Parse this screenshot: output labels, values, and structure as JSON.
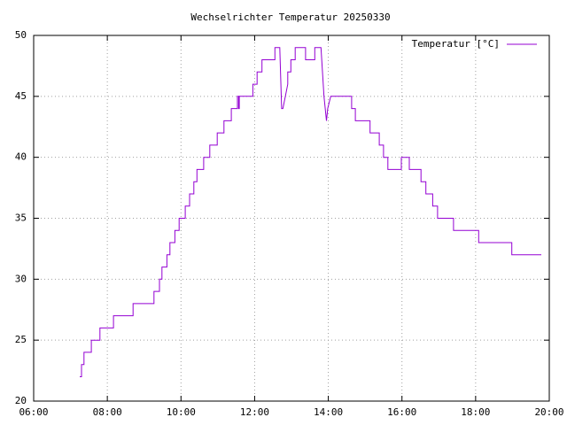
{
  "chart_data": {
    "type": "line",
    "title": "Wechselrichter Temperatur 20250330",
    "x": [
      "07:15",
      "07:18",
      "07:18",
      "07:22",
      "07:22",
      "07:34",
      "07:34",
      "07:48",
      "07:48",
      "08:10",
      "08:10",
      "08:42",
      "08:42",
      "09:16",
      "09:16",
      "09:25",
      "09:25",
      "09:29",
      "09:29",
      "09:37",
      "09:37",
      "09:42",
      "09:42",
      "09:50",
      "09:50",
      "09:57",
      "09:57",
      "10:07",
      "10:07",
      "10:14",
      "10:14",
      "10:21",
      "10:21",
      "10:26",
      "10:26",
      "10:37",
      "10:37",
      "10:47",
      "10:47",
      "10:59",
      "10:59",
      "11:10",
      "11:10",
      "11:22",
      "11:22",
      "11:32",
      "11:32",
      "11:34",
      "11:34",
      "11:35",
      "11:35",
      "11:57",
      "11:57",
      "12:04",
      "12:04",
      "12:12",
      "12:12",
      "12:33",
      "12:33",
      "12:41",
      "12:44",
      "12:46",
      "12:50",
      "12:54",
      "12:54",
      "12:59",
      "12:59",
      "13:06",
      "13:06",
      "13:23",
      "13:23",
      "13:38",
      "13:38",
      "13:48",
      "13:53",
      "13:55",
      "13:57",
      "13:59",
      "14:04",
      "14:38",
      "14:38",
      "14:44",
      "14:44",
      "15:08",
      "15:08",
      "15:23",
      "15:23",
      "15:30",
      "15:30",
      "15:37",
      "15:37",
      "15:59",
      "15:59",
      "16:12",
      "16:12",
      "16:31",
      "16:31",
      "16:39",
      "16:39",
      "16:50",
      "16:50",
      "16:58",
      "16:58",
      "17:24",
      "17:24",
      "18:05",
      "18:05",
      "18:59",
      "18:59",
      "19:47"
    ],
    "series": [
      {
        "name": "Temperatur [°C]",
        "color": "#9400d3",
        "values": [
          22,
          22,
          23,
          23,
          24,
          24,
          25,
          25,
          26,
          26,
          27,
          27,
          28,
          28,
          29,
          29,
          30,
          30,
          31,
          31,
          32,
          32,
          33,
          33,
          34,
          34,
          35,
          35,
          36,
          36,
          37,
          37,
          38,
          38,
          39,
          39,
          40,
          40,
          41,
          41,
          42,
          42,
          43,
          43,
          44,
          44,
          45,
          45,
          44,
          44,
          45,
          45,
          46,
          46,
          47,
          47,
          48,
          48,
          49,
          49,
          44,
          44,
          45,
          46,
          47,
          47,
          48,
          48,
          49,
          49,
          48,
          48,
          49,
          49,
          45,
          44,
          43,
          44,
          45,
          45,
          44,
          44,
          43,
          43,
          42,
          42,
          41,
          41,
          40,
          40,
          39,
          39,
          40,
          40,
          39,
          39,
          38,
          38,
          37,
          37,
          36,
          36,
          35,
          35,
          34,
          34,
          33,
          33,
          32,
          32
        ]
      }
    ],
    "xlim": [
      "06:00",
      "20:00"
    ],
    "xticks": [
      "06:00",
      "08:00",
      "10:00",
      "12:00",
      "14:00",
      "16:00",
      "18:00",
      "20:00"
    ],
    "ylim": [
      20,
      50
    ],
    "yticks": [
      20,
      25,
      30,
      35,
      40,
      45,
      50
    ],
    "grid": true,
    "legend": "top-right"
  }
}
